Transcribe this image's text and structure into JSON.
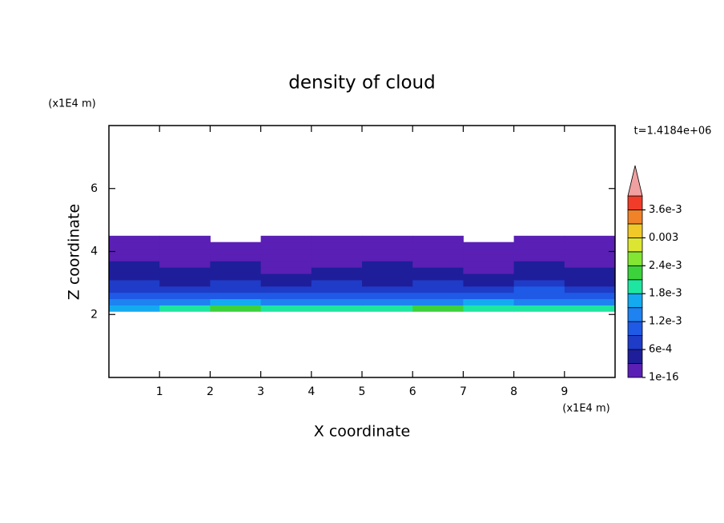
{
  "chart_data": {
    "type": "contour",
    "title": "density of cloud",
    "x_label": "X coordinate",
    "y_label": "Z coordinate",
    "x_unit": "(x1E4 m)",
    "y_unit": "(x1E4 m)",
    "time_label": "t=1.4184e+06",
    "xlim": [
      0,
      10
    ],
    "ylim": [
      0,
      8
    ],
    "xticks": [
      1,
      2,
      3,
      4,
      5,
      6,
      7,
      8,
      9
    ],
    "yticks": [
      2,
      4,
      6
    ],
    "x": [
      0.5,
      1.5,
      2.5,
      3.5,
      4.5,
      5.5,
      6.5,
      7.5,
      8.5,
      9.5
    ],
    "z": [
      2.2,
      2.4,
      2.6,
      2.8,
      3.0,
      3.2,
      3.4,
      3.6,
      3.8,
      4.0,
      4.2,
      4.4
    ],
    "values": [
      [
        0.0016,
        0.0018,
        0.0021,
        0.0019,
        0.002,
        0.0018,
        0.0022,
        0.0019,
        0.002,
        0.0019
      ],
      [
        0.0012,
        0.0013,
        0.0015,
        0.0014,
        0.0012,
        0.0013,
        0.0014,
        0.0015,
        0.0013,
        0.0012
      ],
      [
        0.001,
        0.0009,
        0.0011,
        0.001,
        0.001,
        0.0009,
        0.001,
        0.0011,
        0.001,
        0.0009
      ],
      [
        0.0007,
        0.0008,
        0.0007,
        0.0008,
        0.0007,
        0.0008,
        0.0007,
        0.0008,
        0.0009,
        0.0008
      ],
      [
        0.0006,
        0.0005,
        0.0006,
        0.0004,
        0.0006,
        0.0005,
        0.0006,
        0.0005,
        0.0006,
        0.0005
      ],
      [
        0.0004,
        0.0005,
        0.0004,
        0.0005,
        0.0003,
        0.0004,
        0.0005,
        0.0004,
        0.0004,
        0.0005
      ],
      [
        0.0004,
        0.0003,
        0.0004,
        0.0002,
        0.0003,
        0.0004,
        0.0003,
        0.0002,
        0.0004,
        0.0003
      ],
      [
        0.0003,
        0.0002,
        0.0003,
        0.0002,
        0.0002,
        0.0003,
        0.0002,
        0.0002,
        0.0003,
        0.0002
      ],
      [
        0.0002,
        0.0002,
        0.0002,
        0.0001,
        0.0002,
        0.0002,
        0.0002,
        0.0001,
        0.0002,
        0.0002
      ],
      [
        0.0002,
        0.0001,
        0.0001,
        0.0001,
        0.0001,
        0.0002,
        0.0001,
        0.0001,
        0.0001,
        0.0002
      ],
      [
        0.0001,
        0.0001,
        0.0001,
        0.0001,
        0.0001,
        0.0001,
        0.0001,
        0.0001,
        0.0001,
        0.0001
      ],
      [
        0.0001,
        0.0001,
        null,
        0.0001,
        0.0001,
        0.0001,
        0.0001,
        null,
        0.0001,
        0.0001
      ]
    ],
    "levels": [
      1e-16,
      0.0003,
      0.0006,
      0.0009,
      0.0012,
      0.0015,
      0.0018,
      0.0021,
      0.0024,
      0.0027,
      0.003,
      0.0033,
      0.0036,
      0.0039
    ],
    "colors": [
      "#5a1fb4",
      "#1e1e9a",
      "#1e3cc8",
      "#1e5ae6",
      "#1e82f0",
      "#14aaf0",
      "#1ee6a0",
      "#3cd23c",
      "#82e632",
      "#dce632",
      "#f0c828",
      "#f08228",
      "#f03c28"
    ],
    "extend_color": "#f0a0a0",
    "colorbar_ticks": [
      {
        "value": 1e-16,
        "label": "1e-16"
      },
      {
        "value": 0.0006,
        "label": "6e-4"
      },
      {
        "value": 0.0012,
        "label": "1.2e-3"
      },
      {
        "value": 0.0018,
        "label": "1.8e-3"
      },
      {
        "value": 0.0024,
        "label": "2.4e-3"
      },
      0.003,
      {
        "value": 0.0036,
        "label": "3.6e-3"
      }
    ]
  }
}
